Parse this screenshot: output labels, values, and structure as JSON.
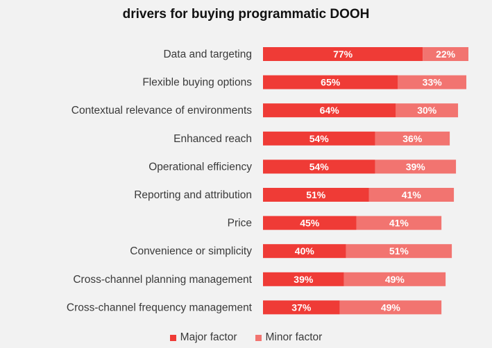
{
  "chart_data": {
    "type": "bar",
    "orientation": "horizontal",
    "stacked": true,
    "title": "drivers for buying programmatic DOOH",
    "categories": [
      "Data and targeting",
      "Flexible buying options",
      "Contextual relevance of environments",
      "Enhanced reach",
      "Operational efficiency",
      "Reporting and attribution",
      "Price",
      "Convenience or simplicity",
      "Cross-channel planning management",
      "Cross-channel frequency management"
    ],
    "series": [
      {
        "name": "Major factor",
        "color": "#ef3b36",
        "values": [
          77,
          65,
          64,
          54,
          54,
          51,
          45,
          40,
          39,
          37
        ]
      },
      {
        "name": "Minor factor",
        "color": "#f27470",
        "values": [
          22,
          33,
          30,
          36,
          39,
          41,
          41,
          51,
          49,
          49
        ]
      }
    ],
    "value_suffix": "%",
    "xlim": [
      0,
      100
    ],
    "legend_position": "bottom"
  }
}
